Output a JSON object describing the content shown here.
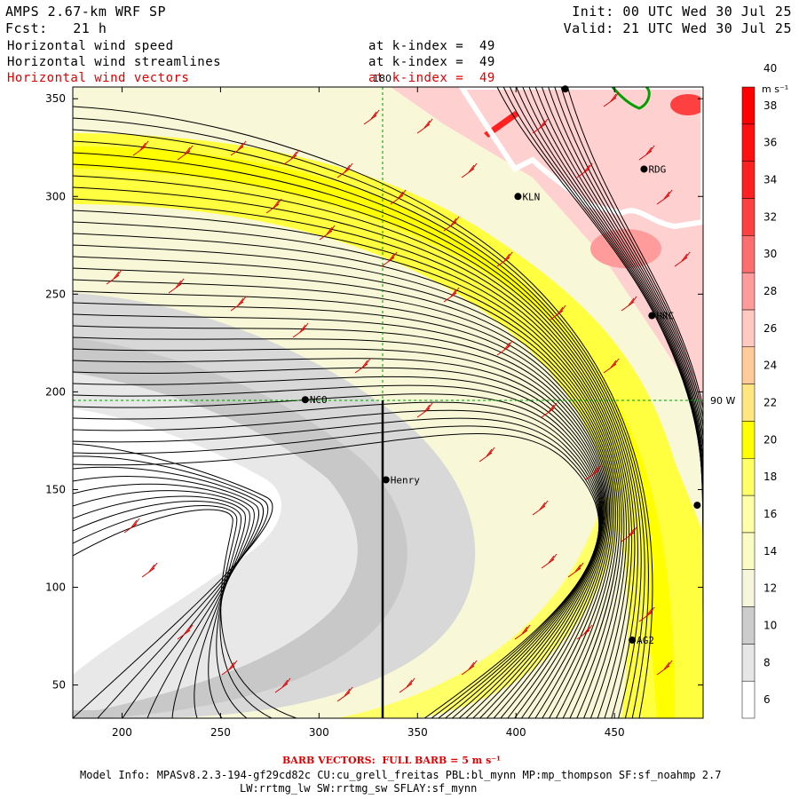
{
  "header": {
    "model_title": "AMPS 2.67-km WRF SP",
    "forecast": "Fcst:   21 h",
    "init": "Init: 00 UTC Wed 30 Jul 25",
    "valid": "Valid: 21 UTC Wed 30 Jul 25"
  },
  "fields": [
    {
      "name": "Horizontal wind speed",
      "level": "at k-index =  49",
      "color": "#000000"
    },
    {
      "name": "Horizontal wind streamlines",
      "level": "at k-index =  49",
      "color": "#000000"
    },
    {
      "name": "Horizontal wind vectors",
      "level": "at k-index =  49",
      "color": "#e00000"
    }
  ],
  "axes": {
    "x_ticks": [
      "200",
      "250",
      "300",
      "350",
      "400",
      "450"
    ],
    "y_ticks": [
      "50",
      "100",
      "150",
      "200",
      "250",
      "300",
      "350"
    ],
    "x_range": [
      175,
      495
    ],
    "y_range": [
      33,
      356
    ]
  },
  "overlays": {
    "longitude_label": "180",
    "latitude_label": "90 W"
  },
  "stations": [
    {
      "name": "KLN",
      "x": 401,
      "y": 300
    },
    {
      "name": "RDG",
      "x": 465,
      "y": 314
    },
    {
      "name": "HRC",
      "x": 469,
      "y": 239
    },
    {
      "name": "NCO",
      "x": 293,
      "y": 196
    },
    {
      "name": "Henry",
      "x": 334,
      "y": 155
    },
    {
      "name": "AG2",
      "x": 459,
      "y": 73
    },
    {
      "name": "",
      "x": 425,
      "y": 355
    },
    {
      "name": "",
      "x": 492,
      "y": 142
    }
  ],
  "colorbar": {
    "unit": "m s⁻¹",
    "labels": [
      "6",
      "8",
      "10",
      "12",
      "14",
      "16",
      "18",
      "20",
      "22",
      "24",
      "26",
      "28",
      "30",
      "32",
      "34",
      "36",
      "38",
      "40"
    ],
    "colors": [
      "#ffffff",
      "#e6e6e6",
      "#cccccc",
      "#f6f6dd",
      "#fbfbc4",
      "#ffffa8",
      "#ffff66",
      "#ffff00",
      "#ffe680",
      "#ffcc99",
      "#ffc8c0",
      "#ff9b9b",
      "#ff6e6e",
      "#ff4040",
      "#ff2020",
      "#ff1010",
      "#ff0000"
    ]
  },
  "footer": {
    "barb_note": "BARB VECTORS:  FULL BARB = 5 m s⁻¹",
    "model_info_1": "Model Info: MPASv8.2.3-194-gf29cd82c CU:cu_grell_freitas PBL:bl_mynn MP:mp_thompson SF:sf_noahmp 2.7",
    "model_info_2": "LW:rrtmg_lw SW:rrtmg_sw SFLAY:sf_mynn"
  },
  "colors": {
    "barb": "#e00000",
    "streamline": "#000000",
    "gridline": "#009900"
  }
}
